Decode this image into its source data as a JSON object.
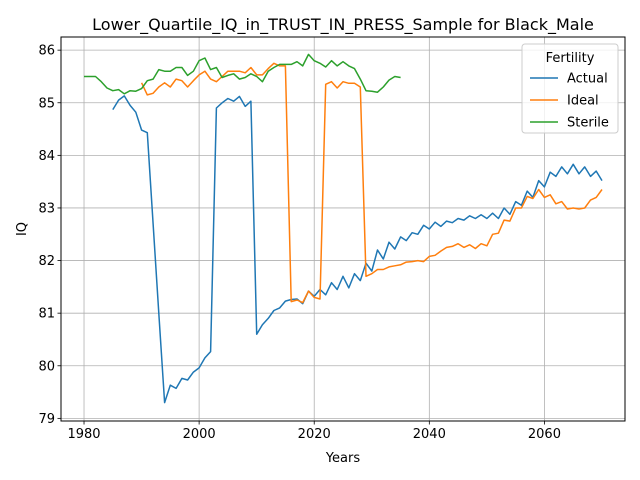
{
  "chart_data": {
    "type": "line",
    "title": "Lower_Quartile_IQ_in_TRUST_IN_PRESS_Sample for Black_Male",
    "xlabel": "Years",
    "ylabel": "IQ",
    "xlim": [
      1976,
      2074
    ],
    "ylim": [
      78.95,
      86.25
    ],
    "xticks": [
      1980,
      2000,
      2020,
      2040,
      2060
    ],
    "yticks": [
      79,
      80,
      81,
      82,
      83,
      84,
      85,
      86
    ],
    "grid": true,
    "legend": {
      "title": "Fertility",
      "position": "top-right"
    },
    "series": [
      {
        "name": "Actual",
        "color": "#1f77b4",
        "x": [
          1985,
          1986,
          1987,
          1988,
          1989,
          1990,
          1991,
          1992,
          1993,
          1994,
          1995,
          1996,
          1997,
          1998,
          1999,
          2000,
          2001,
          2002,
          2003,
          2004,
          2005,
          2006,
          2007,
          2008,
          2009,
          2010,
          2011,
          2012,
          2013,
          2014,
          2015,
          2016,
          2017,
          2018,
          2019,
          2020,
          2021,
          2022,
          2023,
          2024,
          2025,
          2026,
          2027,
          2028,
          2029,
          2030,
          2031,
          2032,
          2033,
          2034,
          2035,
          2036,
          2037,
          2038,
          2039,
          2040,
          2041,
          2042,
          2043,
          2044,
          2045,
          2046,
          2047,
          2048,
          2049,
          2050,
          2051,
          2052,
          2053,
          2054,
          2055,
          2056,
          2057,
          2058,
          2059,
          2060,
          2061,
          2062,
          2063,
          2064,
          2065,
          2066,
          2067,
          2068,
          2069,
          2070
        ],
        "values": [
          84.87,
          85.05,
          85.13,
          84.95,
          84.82,
          84.48,
          84.43,
          82.7,
          81.0,
          79.3,
          79.63,
          79.57,
          79.76,
          79.73,
          79.88,
          79.96,
          80.15,
          80.27,
          84.9,
          85.0,
          85.08,
          85.03,
          85.12,
          84.93,
          85.03,
          80.6,
          80.78,
          80.9,
          81.05,
          81.1,
          81.23,
          81.26,
          81.27,
          81.18,
          81.42,
          81.32,
          81.45,
          81.35,
          81.58,
          81.45,
          81.7,
          81.48,
          81.75,
          81.62,
          81.95,
          81.8,
          82.2,
          82.03,
          82.35,
          82.22,
          82.45,
          82.38,
          82.53,
          82.5,
          82.67,
          82.6,
          82.73,
          82.65,
          82.75,
          82.72,
          82.8,
          82.77,
          82.85,
          82.8,
          82.87,
          82.8,
          82.9,
          82.8,
          83.0,
          82.88,
          83.12,
          83.05,
          83.32,
          83.2,
          83.52,
          83.4,
          83.68,
          83.6,
          83.78,
          83.65,
          83.83,
          83.65,
          83.78,
          83.6,
          83.7,
          83.52
        ]
      },
      {
        "name": "Ideal",
        "color": "#ff7f0e",
        "x": [
          1990,
          1991,
          1992,
          1993,
          1994,
          1995,
          1996,
          1997,
          1998,
          1999,
          2000,
          2001,
          2002,
          2003,
          2004,
          2005,
          2006,
          2007,
          2008,
          2009,
          2010,
          2011,
          2012,
          2013,
          2014,
          2015,
          2016,
          2017,
          2018,
          2019,
          2020,
          2021,
          2022,
          2023,
          2024,
          2025,
          2026,
          2027,
          2028,
          2029,
          2030,
          2031,
          2032,
          2033,
          2034,
          2035,
          2036,
          2037,
          2038,
          2039,
          2040,
          2041,
          2042,
          2043,
          2044,
          2045,
          2046,
          2047,
          2048,
          2049,
          2050,
          2051,
          2052,
          2053,
          2054,
          2055,
          2056,
          2057,
          2058,
          2059,
          2060,
          2061,
          2062,
          2063,
          2064,
          2065,
          2066,
          2067,
          2068,
          2069,
          2070
        ],
        "values": [
          85.38,
          85.15,
          85.18,
          85.3,
          85.38,
          85.3,
          85.45,
          85.42,
          85.3,
          85.42,
          85.53,
          85.6,
          85.45,
          85.4,
          85.5,
          85.6,
          85.6,
          85.6,
          85.57,
          85.67,
          85.53,
          85.53,
          85.65,
          85.75,
          85.7,
          85.7,
          81.22,
          81.25,
          81.2,
          81.42,
          81.3,
          81.27,
          85.35,
          85.4,
          85.28,
          85.4,
          85.37,
          85.37,
          85.3,
          81.7,
          81.75,
          81.83,
          81.83,
          81.88,
          81.9,
          81.92,
          81.97,
          81.98,
          82.0,
          81.98,
          82.08,
          82.1,
          82.18,
          82.25,
          82.27,
          82.32,
          82.25,
          82.3,
          82.23,
          82.32,
          82.28,
          82.5,
          82.52,
          82.77,
          82.75,
          83.0,
          83.0,
          83.22,
          83.18,
          83.35,
          83.2,
          83.25,
          83.08,
          83.12,
          82.98,
          83.0,
          82.98,
          83.0,
          83.15,
          83.2,
          83.35
        ]
      },
      {
        "name": "Sterile",
        "color": "#2ca02c",
        "x": [
          1980,
          1981,
          1982,
          1983,
          1984,
          1985,
          1986,
          1987,
          1988,
          1989,
          1990,
          1991,
          1992,
          1993,
          1994,
          1995,
          1996,
          1997,
          1998,
          1999,
          2000,
          2001,
          2002,
          2003,
          2004,
          2005,
          2006,
          2007,
          2008,
          2009,
          2010,
          2011,
          2012,
          2013,
          2014,
          2015,
          2016,
          2017,
          2018,
          2019,
          2020,
          2021,
          2022,
          2023,
          2024,
          2025,
          2026,
          2027,
          2028,
          2029,
          2030,
          2031,
          2032,
          2033,
          2034,
          2035
        ],
        "values": [
          85.5,
          85.5,
          85.5,
          85.4,
          85.28,
          85.23,
          85.25,
          85.17,
          85.23,
          85.22,
          85.27,
          85.42,
          85.45,
          85.63,
          85.6,
          85.6,
          85.67,
          85.67,
          85.52,
          85.6,
          85.8,
          85.85,
          85.63,
          85.67,
          85.48,
          85.52,
          85.55,
          85.45,
          85.48,
          85.55,
          85.5,
          85.4,
          85.6,
          85.67,
          85.73,
          85.73,
          85.73,
          85.78,
          85.7,
          85.92,
          85.8,
          85.75,
          85.68,
          85.8,
          85.7,
          85.78,
          85.7,
          85.65,
          85.45,
          85.23,
          85.22,
          85.2,
          85.3,
          85.43,
          85.5,
          85.48
        ]
      }
    ]
  }
}
